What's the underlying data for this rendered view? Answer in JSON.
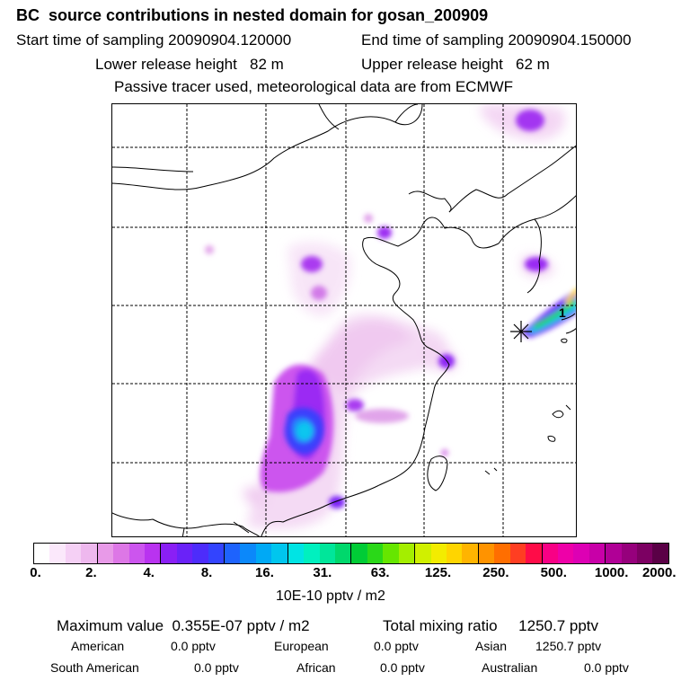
{
  "header": {
    "title": "BC  source contributions in nested domain for gosan_200909",
    "start": "Start time of sampling 20090904.120000",
    "end": "End time of sampling 20090904.150000",
    "lower": "Lower release height   82 m",
    "upper": "Upper release height   62 m",
    "note": "Passive tracer used, meteorological data are from ECMWF"
  },
  "map": {
    "receptor_label": "1"
  },
  "colorbar": {
    "ticks": [
      "0.",
      "2.",
      "4.",
      "8.",
      "16.",
      "31.",
      "63.",
      "125.",
      "250.",
      "500.",
      "1000.",
      "2000."
    ],
    "unit": "10E-10 pptv / m2",
    "colors": [
      "#ffffff",
      "#fbe8fb",
      "#f5d0f5",
      "#eeb8ee",
      "#e89ae8",
      "#dd77e6",
      "#cc55ee",
      "#b933f0",
      "#8a1ff5",
      "#6a22f8",
      "#4d2cfb",
      "#3344fe",
      "#1e63fd",
      "#0b88fa",
      "#00a9f5",
      "#00c6ee",
      "#00e4e4",
      "#00f0bf",
      "#00e69a",
      "#00d86c",
      "#00cc36",
      "#2ad818",
      "#66e600",
      "#a4ee00",
      "#d0f000",
      "#f3ec00",
      "#ffd500",
      "#ffb400",
      "#ff9300",
      "#ff6e00",
      "#ff3e22",
      "#ff0c48",
      "#f80085",
      "#ee00a8",
      "#dd00b4",
      "#c800a8",
      "#b00096",
      "#96007c",
      "#7c0062",
      "#5a0046"
    ]
  },
  "stats": {
    "max": "Maximum value  0.355E-07 pptv / m2",
    "total": "Total mixing ratio     1250.7 pptv",
    "american": "American",
    "american_v": "0.0 pptv",
    "european": "European",
    "european_v": "0.0 pptv",
    "asian": "Asian",
    "asian_v": "1250.7 pptv",
    "southam": "South American",
    "southam_v": "0.0 pptv",
    "african": "African",
    "african_v": "0.0 pptv",
    "australian": "Australian",
    "australian_v": "0.0 pptv"
  }
}
